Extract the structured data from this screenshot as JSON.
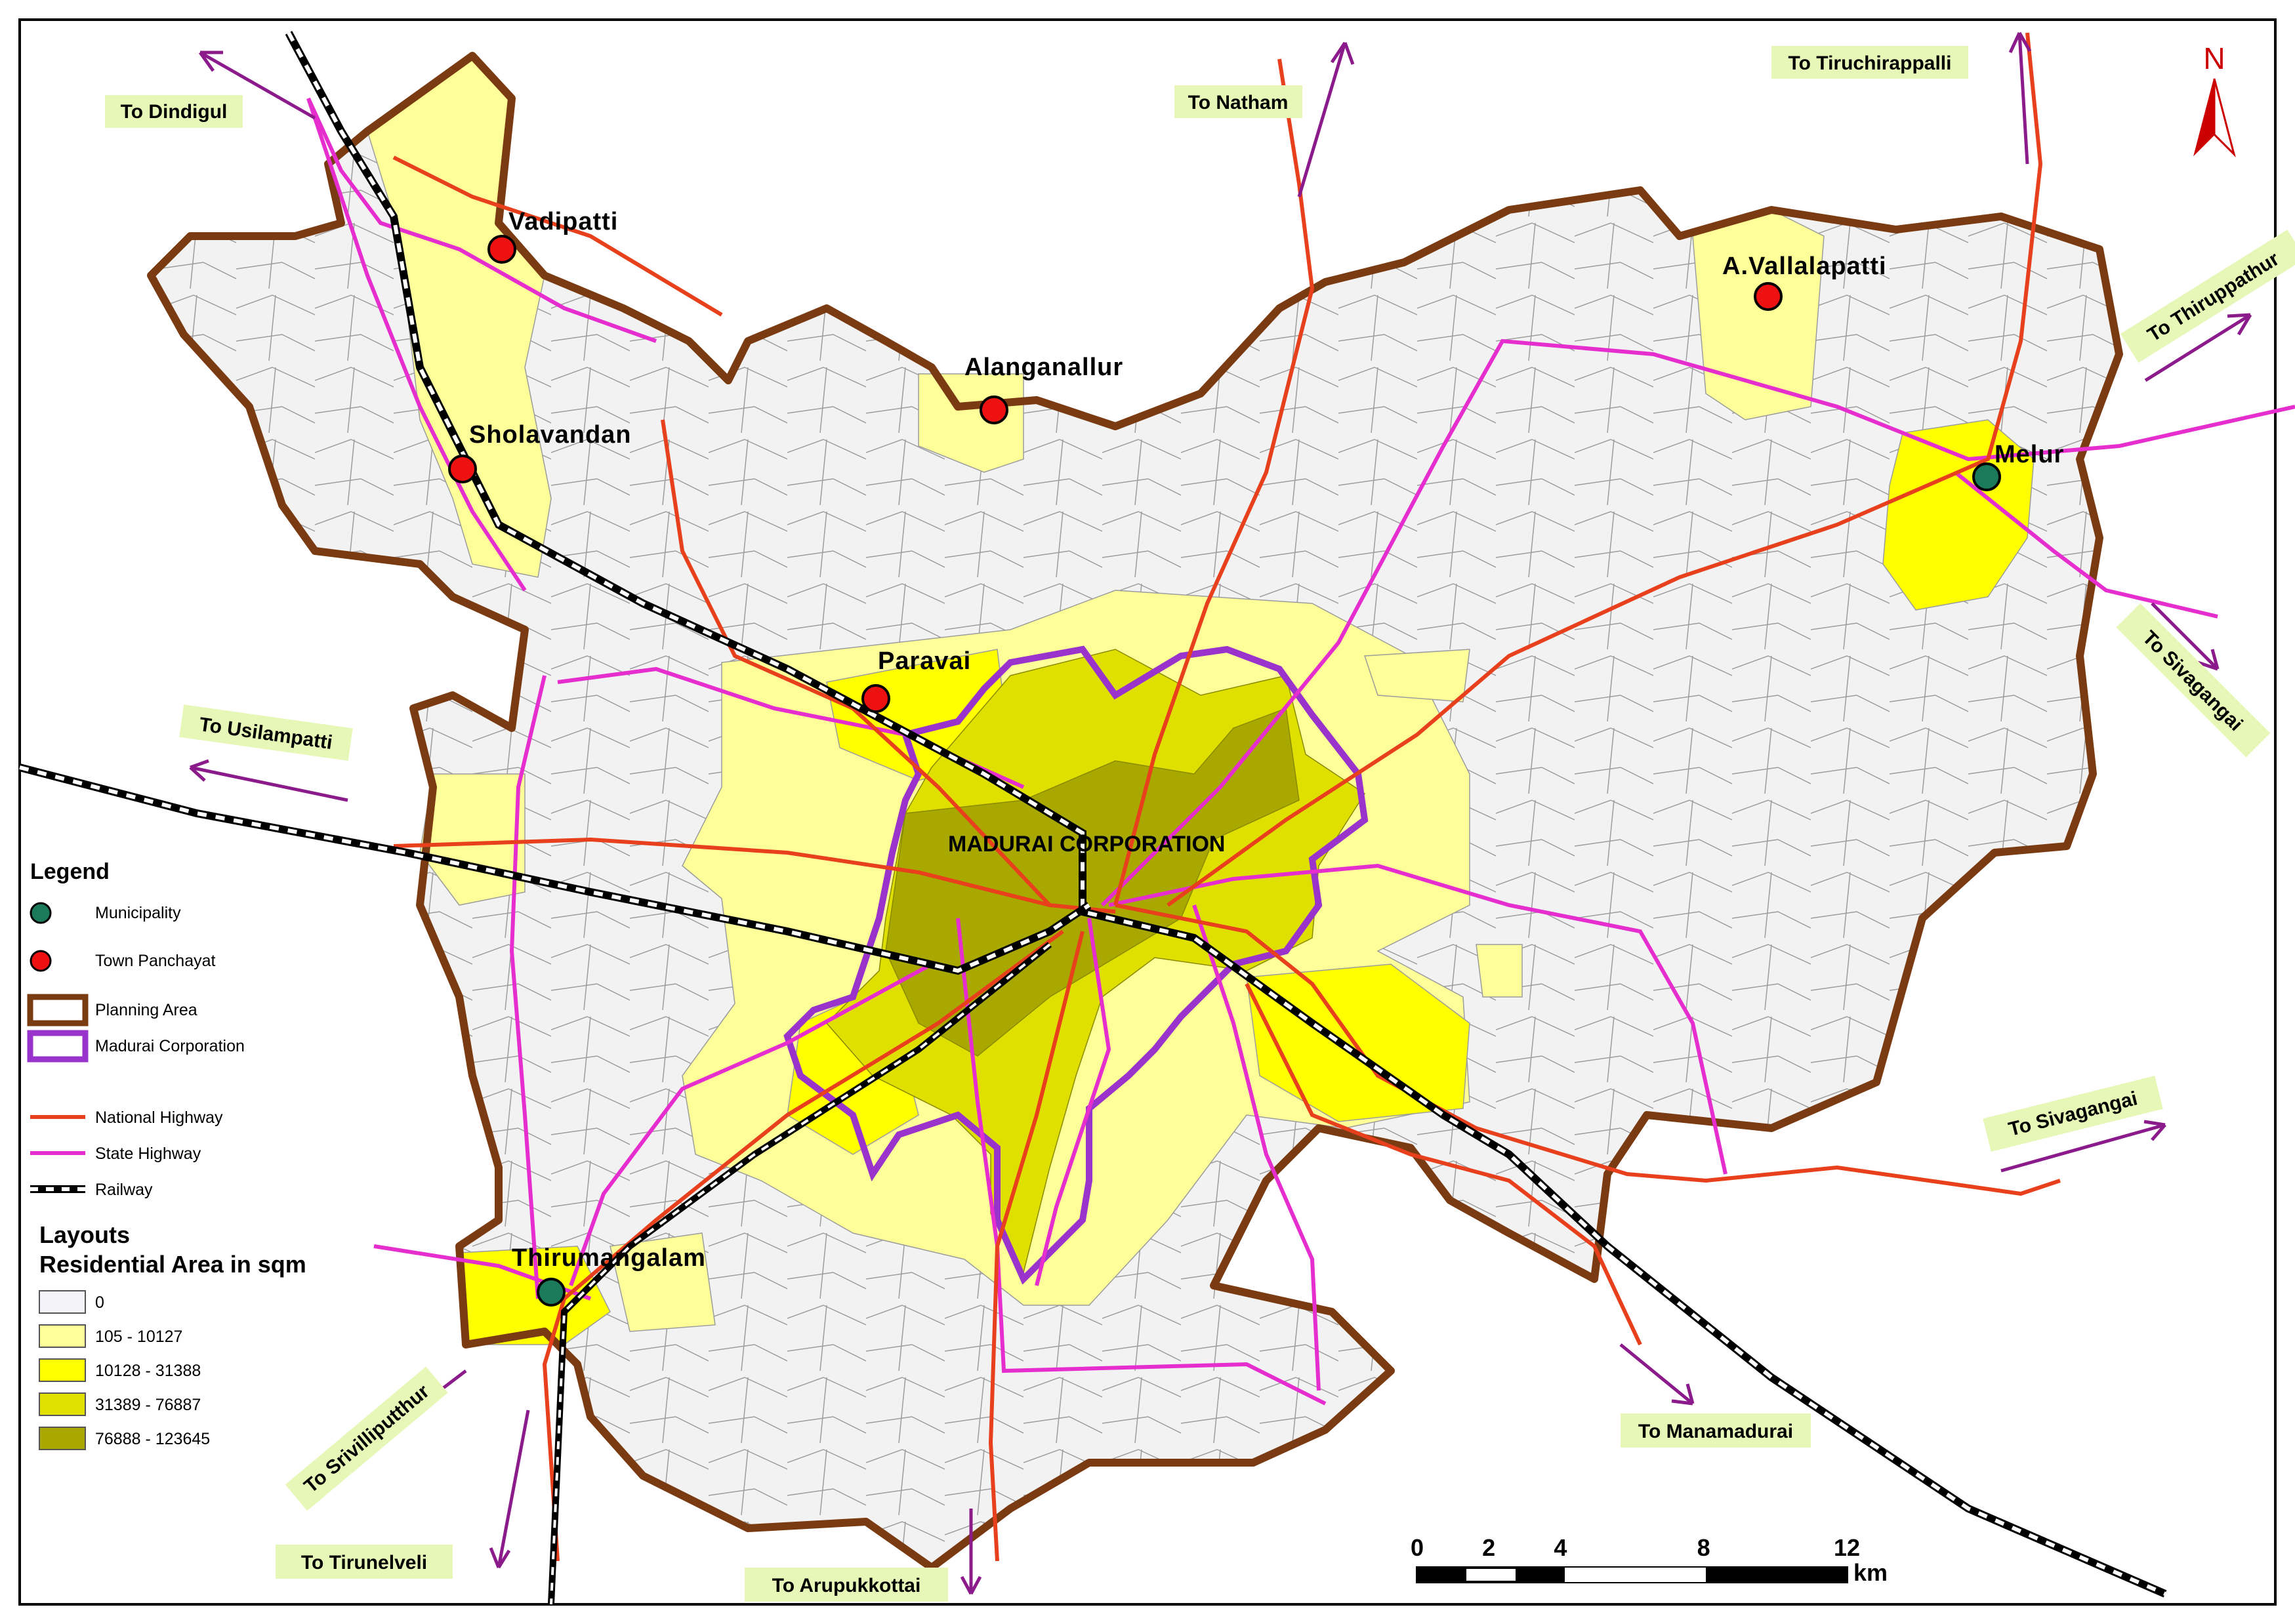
{
  "destinations": {
    "dindigul": "To Dindigul",
    "natham": "To Natham",
    "tiruchirappalli": "To Tiruchirappalli",
    "thiruppathur": "To Thiruppathur",
    "sivagangai_upper": "To Sivagangai",
    "usilampatti": "To Usilampatti",
    "sivagangai_lower": "To Sivagangai",
    "manamadurai": "To Manamadurai",
    "srivilliputthur": "To Srivilliputthur",
    "tirunelveli": "To Tirunelveli",
    "arupukkottai": "To Arupukkottai"
  },
  "places": {
    "vadipatti": "Vadipatti",
    "sholavandan": "Sholavandan",
    "alanganallur": "Alanganallur",
    "a_vallalapatti": "A.Vallalapatti",
    "melur": "Melur",
    "paravai": "Paravai",
    "thirumangalam": "Thirumangalam",
    "madurai_corporation": "MADURAI CORPORATION"
  },
  "north_arrow": {
    "label": "N"
  },
  "legend": {
    "title": "Legend",
    "municipality": "Municipality",
    "town_panchayat": "Town Panchayat",
    "planning_area": "Planning Area",
    "madurai_corporation": "Madurai Corporation",
    "national_highway": "National Highway",
    "state_highway": "State Highway",
    "railway": "Railway",
    "layouts_title_line1": "Layouts",
    "layouts_title_line2": "Residential Area in sqm",
    "classes": [
      {
        "label": "0",
        "color": "#f4f2fa"
      },
      {
        "label": "105 - 10127",
        "color": "#ffff99"
      },
      {
        "label": "10128 - 31388",
        "color": "#ffff00"
      },
      {
        "label": "31389 - 76887",
        "color": "#e0e000"
      },
      {
        "label": "76888 - 123645",
        "color": "#a8a800"
      }
    ]
  },
  "scale_bar": {
    "ticks": [
      "0",
      "2",
      "4",
      "8",
      "12"
    ],
    "unit": "km"
  },
  "colors": {
    "planning_area": "#7a3b12",
    "corporation": "#9933cc",
    "national_highway": "#e8401c",
    "state_highway": "#e62ecf",
    "arrow": "#8b1a8b",
    "municipality": "#1a7a5a",
    "town_panchayat": "#ee1111",
    "base_fill": "#f2f2f2"
  }
}
